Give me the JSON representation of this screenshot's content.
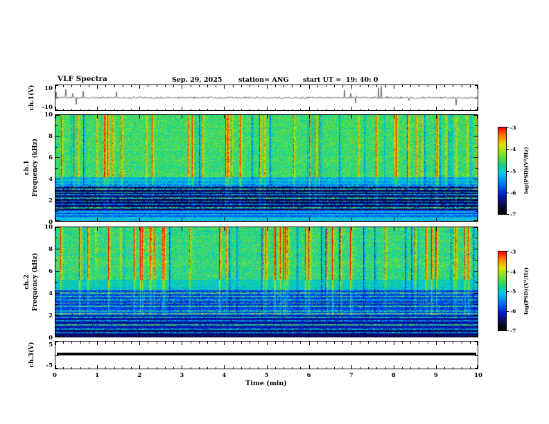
{
  "header": {
    "title": "VLF Spectra",
    "date": "Sep. 29, 2025",
    "station": "station= ANG",
    "start_ut": "start UT =  19: 40: 0"
  },
  "ylabels": {
    "ch1_wave": "ch.1(V)",
    "ch1_spec_line1": "ch.1",
    "ch1_spec_line2": "Frequency (kHz)",
    "ch2_spec_line1": "ch.2",
    "ch2_spec_line2": "Frequency (kHz)",
    "ch3_wave": "ch.3(V)"
  },
  "axes": {
    "x": {
      "label": "Time (min)",
      "min": 0,
      "max": 10,
      "majors": [
        0,
        1,
        2,
        3,
        4,
        5,
        6,
        7,
        8,
        9,
        10
      ],
      "minor_step": 0.2
    },
    "spec_y": {
      "min": 0,
      "max": 10,
      "majors": [
        0,
        2,
        4,
        6,
        8,
        10
      ],
      "minors": [
        1,
        3,
        5,
        7,
        9
      ]
    },
    "ch1_wave_y": {
      "min": -10,
      "max": 10,
      "ticks": [
        10,
        -10
      ]
    },
    "ch3_wave_y": {
      "min": -5,
      "max": 5,
      "ticks": [
        5,
        -5
      ]
    }
  },
  "colorbar": {
    "label": "log(PSD)(V²/Hz)",
    "ticks": [
      -3,
      -4,
      -5,
      -6,
      -7
    ],
    "top_color": "#ff0000",
    "bottom_color": "#000000"
  },
  "render": {
    "seed_ch1_wave": 20250929,
    "seed_ch1_spec": 1940,
    "seed_ch2_spec": 29184
  },
  "chart_data": [
    {
      "type": "line",
      "title": "ch.1(V) waveform",
      "xlabel": "Time (min)",
      "ylabel": "ch.1(V)",
      "xlim": [
        0,
        10
      ],
      "ylim": [
        -10,
        10
      ],
      "yticks": [
        10,
        -10
      ],
      "description": "Continuous low-amplitude noise trace centered on 0 V with frequent impulsive spikes of roughly ±2 to ±9 V throughout the 10-minute record"
    },
    {
      "type": "heatmap",
      "title": "ch.1 spectrogram",
      "xlabel": "Time (min)",
      "ylabel": "ch.1 Frequency (kHz)",
      "xlim": [
        0,
        10
      ],
      "ylim": [
        0,
        10
      ],
      "yticks": [
        0,
        2,
        4,
        6,
        8,
        10
      ],
      "zlabel": "log(PSD)(V²/Hz)",
      "zlim": [
        -7,
        -3
      ],
      "regions": [
        {
          "freq_khz": [
            4,
            10
          ],
          "level": "about -4 (green/yellow) with dense vertical red burst streaks reaching -3"
        },
        {
          "freq_khz": [
            3.3,
            4
          ],
          "level": "about -5.5 (blue/cyan band)"
        },
        {
          "freq_khz": [
            1.1,
            3.3
          ],
          "level": "about -7 background (black) crossed by persistent cyan horizontal interference lines near -5.5"
        },
        {
          "freq_khz": [
            0,
            1.1
          ],
          "level": "about -5.5 to -5 (blue/green bands)"
        }
      ],
      "spectral_lines_khz": [
        0.6,
        0.9,
        1.3,
        1.6,
        1.9,
        2.2,
        2.5,
        2.75,
        3.05,
        3.3,
        3.6,
        3.9
      ]
    },
    {
      "type": "heatmap",
      "title": "ch.2 spectrogram",
      "xlabel": "Time (min)",
      "ylabel": "ch.2 Frequency (kHz)",
      "xlim": [
        0,
        10
      ],
      "ylim": [
        0,
        10
      ],
      "yticks": [
        0,
        2,
        4,
        6,
        8,
        10
      ],
      "zlabel": "log(PSD)(V²/Hz)",
      "zlim": [
        -7,
        -3
      ],
      "regions": [
        {
          "freq_khz": [
            5,
            10
          ],
          "level": "about -4 (green/yellow) with dense vertical red bursts reaching -3, strongest above 8 kHz"
        },
        {
          "freq_khz": [
            4.2,
            5
          ],
          "level": "about -4.5 (green/cyan transition)"
        },
        {
          "freq_khz": [
            2,
            4.2
          ],
          "level": "about -6 (blue) with cyan horizontal interference lines"
        },
        {
          "freq_khz": [
            0,
            2
          ],
          "level": "about -6.5 (dark blue) with faint horizontal lines"
        }
      ],
      "spectral_lines_khz": [
        0.4,
        0.7,
        1.1,
        1.5,
        1.8,
        2.1,
        2.4,
        2.8,
        3.1,
        3.4,
        3.7,
        4.0
      ]
    },
    {
      "type": "line",
      "title": "ch.3(V) waveform",
      "xlabel": "Time (min)",
      "ylabel": "ch.3(V)",
      "xlim": [
        0,
        10
      ],
      "ylim": [
        -5,
        5
      ],
      "yticks": [
        5,
        -5
      ],
      "values": "constant 0 V (flat thick black line)"
    }
  ]
}
